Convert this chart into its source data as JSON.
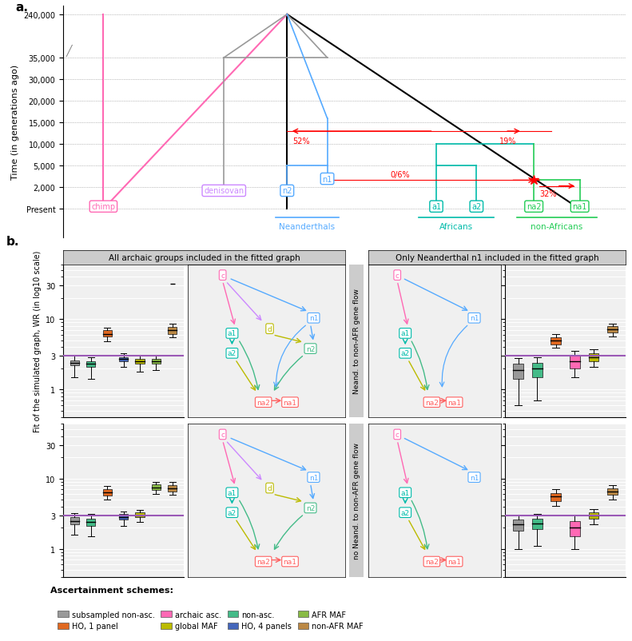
{
  "fig_width": 7.91,
  "fig_height": 8.03,
  "panel_a_label": "a.",
  "panel_b_label": "b.",
  "tree": {
    "y_tick_labels": [
      "Present",
      "2,000",
      "5,000",
      "10,000",
      "15,000",
      "20,000",
      "30,000",
      "35,000",
      "240,000"
    ],
    "ylabel": "Time (in generations ago)"
  },
  "col_headers": [
    "All archaic groups included in the fitted graph",
    "Only Neanderthal n1 included in the fitted graph"
  ],
  "row_headers": [
    "Neand. to non-AFR gene flow",
    "no Neand. to non-AFR gene flow"
  ],
  "hline_y": 3.0,
  "hline_color": "#9B59B6",
  "boxplot_data": {
    "row0_col0": [
      {
        "color": "#999999",
        "median": 2.4,
        "q1": 2.2,
        "q3": 2.6,
        "whislo": 1.5,
        "whishi": 3.0,
        "fliers": []
      },
      {
        "color": "#44BB88",
        "median": 2.3,
        "q1": 2.1,
        "q3": 2.55,
        "whislo": 1.4,
        "whishi": 2.9,
        "fliers": []
      },
      {
        "color": "#E06820",
        "median": 6.2,
        "q1": 5.6,
        "q3": 6.9,
        "whislo": 4.9,
        "whishi": 7.6,
        "fliers": []
      },
      {
        "color": "#4466BB",
        "median": 2.7,
        "q1": 2.5,
        "q3": 2.9,
        "whislo": 2.1,
        "whishi": 3.3,
        "fliers": []
      },
      {
        "color": "#BBBB00",
        "median": 2.5,
        "q1": 2.3,
        "q3": 2.7,
        "whislo": 1.8,
        "whishi": 3.1,
        "fliers": []
      },
      {
        "color": "#88BB44",
        "median": 2.5,
        "q1": 2.3,
        "q3": 2.75,
        "whislo": 1.9,
        "whishi": 3.1,
        "fliers": []
      },
      {
        "color": "#BB8844",
        "median": 7.0,
        "q1": 6.2,
        "q3": 7.8,
        "whislo": 5.5,
        "whishi": 8.5,
        "fliers": [
          32.0
        ]
      }
    ],
    "row0_col3": [
      {
        "color": "#999999",
        "median": 1.9,
        "q1": 1.4,
        "q3": 2.3,
        "whislo": 0.6,
        "whishi": 2.8,
        "fliers": []
      },
      {
        "color": "#44BB88",
        "median": 2.0,
        "q1": 1.5,
        "q3": 2.4,
        "whislo": 0.7,
        "whishi": 2.9,
        "fliers": []
      },
      {
        "color": "#E06820",
        "median": 5.0,
        "q1": 4.4,
        "q3": 5.5,
        "whislo": 3.9,
        "whishi": 6.1,
        "fliers": []
      },
      {
        "color": "#FF69B4",
        "median": 2.5,
        "q1": 2.0,
        "q3": 3.0,
        "whislo": 1.5,
        "whishi": 3.5,
        "fliers": []
      },
      {
        "color": "#BBBB00",
        "median": 2.9,
        "q1": 2.5,
        "q3": 3.3,
        "whislo": 2.1,
        "whishi": 3.7,
        "fliers": []
      },
      {
        "color": "#BB8844",
        "median": 7.2,
        "q1": 6.4,
        "q3": 7.9,
        "whislo": 5.6,
        "whishi": 8.6,
        "fliers": []
      }
    ],
    "row1_col0": [
      {
        "color": "#999999",
        "median": 2.5,
        "q1": 2.2,
        "q3": 2.8,
        "whislo": 1.6,
        "whishi": 3.2,
        "fliers": []
      },
      {
        "color": "#44BB88",
        "median": 2.4,
        "q1": 2.1,
        "q3": 2.7,
        "whislo": 1.5,
        "whishi": 3.1,
        "fliers": []
      },
      {
        "color": "#E06820",
        "median": 6.3,
        "q1": 5.7,
        "q3": 7.0,
        "whislo": 5.0,
        "whishi": 7.8,
        "fliers": []
      },
      {
        "color": "#4466BB",
        "median": 2.8,
        "q1": 2.6,
        "q3": 3.1,
        "whislo": 2.1,
        "whishi": 3.4,
        "fliers": []
      },
      {
        "color": "#BBBB00",
        "median": 3.0,
        "q1": 2.8,
        "q3": 3.3,
        "whislo": 2.4,
        "whishi": 3.6,
        "fliers": []
      },
      {
        "color": "#88BB44",
        "median": 7.5,
        "q1": 6.8,
        "q3": 8.2,
        "whislo": 6.0,
        "whishi": 9.0,
        "fliers": []
      },
      {
        "color": "#BB8844",
        "median": 7.2,
        "q1": 6.5,
        "q3": 8.0,
        "whislo": 5.8,
        "whishi": 8.8,
        "fliers": []
      }
    ],
    "row1_col3": [
      {
        "color": "#999999",
        "median": 2.2,
        "q1": 1.8,
        "q3": 2.6,
        "whislo": 1.0,
        "whishi": 3.0,
        "fliers": []
      },
      {
        "color": "#44BB88",
        "median": 2.3,
        "q1": 1.9,
        "q3": 2.7,
        "whislo": 1.1,
        "whishi": 3.1,
        "fliers": []
      },
      {
        "color": "#E06820",
        "median": 5.5,
        "q1": 4.8,
        "q3": 6.2,
        "whislo": 4.1,
        "whishi": 7.0,
        "fliers": []
      },
      {
        "color": "#FF69B4",
        "median": 2.0,
        "q1": 1.5,
        "q3": 2.5,
        "whislo": 1.0,
        "whishi": 3.0,
        "fliers": []
      },
      {
        "color": "#BBBB00",
        "median": 3.0,
        "q1": 2.7,
        "q3": 3.3,
        "whislo": 2.2,
        "whishi": 3.7,
        "fliers": []
      },
      {
        "color": "#BB8844",
        "median": 6.5,
        "q1": 5.8,
        "q3": 7.2,
        "whislo": 5.0,
        "whishi": 8.0,
        "fliers": []
      }
    ]
  },
  "legend_items": [
    {
      "label": "subsampled non-asc.",
      "color": "#999999"
    },
    {
      "label": "HO, 1 panel",
      "color": "#E06820"
    },
    {
      "label": "archaic asc.",
      "color": "#FF69B4"
    },
    {
      "label": "global MAF",
      "color": "#BBBB00"
    },
    {
      "label": "non-asc.",
      "color": "#44BB88"
    },
    {
      "label": "HO, 4 panels",
      "color": "#4466BB"
    },
    {
      "label": "AFR MAF",
      "color": "#88BB44"
    },
    {
      "label": "non-AFR MAF",
      "color": "#BB8844"
    }
  ]
}
